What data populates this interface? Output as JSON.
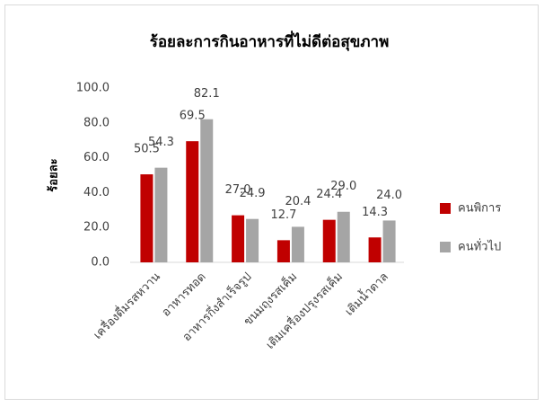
{
  "chart_data": {
    "type": "bar",
    "title": "ร้อยละการกินอาหารที่ไม่ดีต่อสุขภาพ",
    "y_label": "ร้อยละ",
    "categories": [
      "เครื่องดื่มรสหวาน",
      "อาหารทอด",
      "อาหารกึ่งสำเร็จรูป",
      "ขนมถุงรสเค็ม",
      "เติมเครื่องปรุงรสเค็ม",
      "เติมน้ำตาล"
    ],
    "series": [
      {
        "name": "คนพิการ",
        "color": "#c00000",
        "values": [
          50.5,
          69.5,
          27.0,
          12.7,
          24.4,
          14.3
        ],
        "value_labels": [
          "50.5",
          "69.5",
          "27.0",
          "12.7",
          "24.4",
          "14.3"
        ]
      },
      {
        "name": "คนทั่วไป",
        "color": "#a5a5a5",
        "values": [
          54.3,
          82.1,
          24.9,
          20.4,
          29.0,
          24.0
        ],
        "value_labels": [
          "54.3",
          "82.1",
          "24.9",
          "20.4",
          "29.0",
          "24.0"
        ]
      }
    ],
    "ylim": [
      0,
      100
    ],
    "yticks": [
      {
        "value": 0,
        "label": "0.0"
      },
      {
        "value": 20,
        "label": "20.0"
      },
      {
        "value": 40,
        "label": "40.0"
      },
      {
        "value": 60,
        "label": "60.0"
      },
      {
        "value": 80,
        "label": "80.0"
      },
      {
        "value": 100,
        "label": "100.0"
      }
    ],
    "grid": false,
    "legend": "right"
  }
}
